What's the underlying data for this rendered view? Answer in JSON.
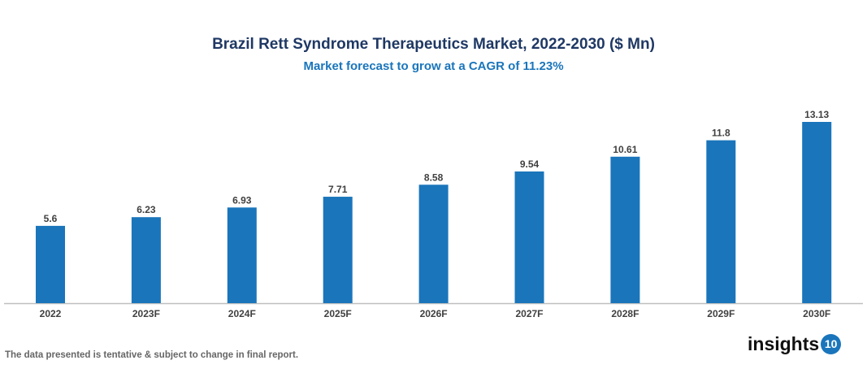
{
  "chart_data": {
    "type": "bar",
    "title": "Brazil Rett Syndrome Therapeutics Market, 2022-2030 ($ Mn)",
    "subtitle": "Market forecast to grow at a CAGR of 11.23%",
    "categories": [
      "2022",
      "2023F",
      "2024F",
      "2025F",
      "2026F",
      "2027F",
      "2028F",
      "2029F",
      "2030F"
    ],
    "values": [
      5.6,
      6.23,
      6.93,
      7.71,
      8.58,
      9.54,
      10.61,
      11.8,
      13.13
    ],
    "value_labels": [
      "5.6",
      "6.23",
      "6.93",
      "7.71",
      "8.58",
      "9.54",
      "10.61",
      "11.8",
      "13.13"
    ],
    "ylim": [
      0,
      13.13
    ],
    "grid": false,
    "bar_color": "#1a75bb"
  },
  "footer_note": "The data presented is tentative & subject to change in final report.",
  "logo": {
    "text": "insights",
    "badge": "10"
  }
}
